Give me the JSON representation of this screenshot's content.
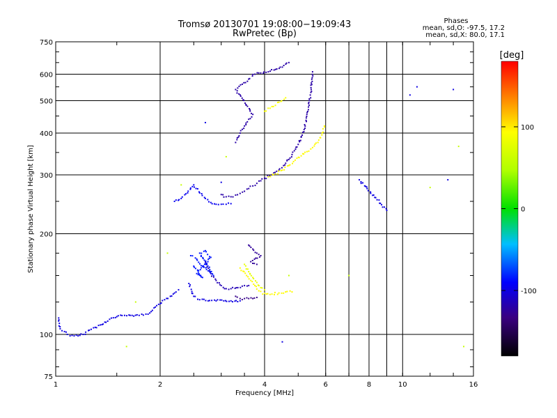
{
  "chart_data": {
    "type": "scatter",
    "title": "Tromsø 20130701 19:08:00−19:09:43",
    "subtitle": "RwPretec (Bp)",
    "xlabel": "Frequency [MHz]",
    "ylabel": "Stationary phase Virtual Height [km]",
    "x_scale": "log",
    "y_scale": "log",
    "xlim": [
      1,
      16
    ],
    "ylim": [
      75,
      750
    ],
    "x_ticks": [
      1,
      2,
      4,
      6,
      8,
      10,
      16
    ],
    "x_tick_labels": [
      "1",
      "2",
      "4",
      "6",
      "8",
      "10",
      "16"
    ],
    "x_gridlines": [
      2,
      4,
      6,
      7,
      8,
      9,
      10
    ],
    "y_ticks": [
      75,
      100,
      200,
      300,
      400,
      500,
      600,
      750
    ],
    "y_tick_labels": [
      "75",
      "100",
      "200",
      "300",
      "400",
      "500",
      "600",
      "750"
    ],
    "y_gridlines": [
      100,
      200,
      300,
      400,
      500,
      600
    ],
    "grid": true,
    "legend_position": "top-right",
    "legend": {
      "title": "Phases",
      "line1": "mean, sd,O:  -97.5, 17.2",
      "line2": "mean, sd,X:  80.0, 17.1"
    },
    "colorbar": {
      "label": "[deg]",
      "range": [
        -180,
        180
      ],
      "ticks": [
        100,
        0,
        -100
      ],
      "tick_labels": [
        "100",
        "0",
        "-100"
      ]
    },
    "series": [
      {
        "traces": [
          {
            "phase": -100,
            "points": [
              [
                1.02,
                112
              ],
              [
                1.03,
                104
              ],
              [
                1.06,
                102
              ],
              [
                1.08,
                100
              ],
              [
                1.1,
                99
              ],
              [
                1.13,
                99
              ],
              [
                1.16,
                99
              ],
              [
                1.2,
                100
              ],
              [
                1.25,
                103
              ],
              [
                1.3,
                105
              ],
              [
                1.36,
                107
              ],
              [
                1.43,
                111
              ],
              [
                1.5,
                113
              ],
              [
                1.58,
                114
              ],
              [
                1.66,
                114
              ],
              [
                1.74,
                114
              ],
              [
                1.82,
                115
              ],
              [
                1.9,
                118
              ],
              [
                1.98,
                123
              ],
              [
                2.06,
                127
              ],
              [
                2.14,
                130
              ],
              [
                2.2,
                133
              ],
              [
                2.26,
                136
              ]
            ]
          },
          {
            "phase": -100,
            "points": [
              [
                2.42,
                142
              ],
              [
                2.5,
                130
              ],
              [
                2.6,
                127
              ],
              [
                2.75,
                126
              ],
              [
                2.9,
                126
              ],
              [
                3.05,
                126
              ],
              [
                3.2,
                126
              ],
              [
                3.4,
                126
              ]
            ]
          },
          {
            "phase": -115,
            "points": [
              [
                2.7,
                165
              ],
              [
                2.8,
                152
              ],
              [
                2.9,
                145
              ],
              [
                3.0,
                140
              ],
              [
                3.1,
                137
              ],
              [
                3.2,
                137
              ],
              [
                3.35,
                138
              ],
              [
                3.5,
                140
              ],
              [
                3.6,
                140
              ]
            ]
          },
          {
            "phase": -130,
            "points": [
              [
                3.3,
                130
              ],
              [
                3.4,
                128
              ],
              [
                3.5,
                128
              ],
              [
                3.6,
                128
              ],
              [
                3.7,
                128
              ],
              [
                3.8,
                129
              ]
            ]
          },
          {
            "phase": -85,
            "points": [
              [
                2.45,
                172
              ],
              [
                2.55,
                168
              ],
              [
                2.65,
                160
              ],
              [
                2.75,
                155
              ],
              [
                2.85,
                150
              ],
              [
                2.6,
                175
              ],
              [
                2.7,
                178
              ],
              [
                2.8,
                170
              ],
              [
                2.55,
                152
              ],
              [
                2.65,
                148
              ],
              [
                2.5,
                160
              ]
            ]
          },
          {
            "phase": 95,
            "points": [
              [
                3.4,
                158
              ],
              [
                3.55,
                150
              ],
              [
                3.65,
                145
              ],
              [
                3.75,
                140
              ],
              [
                3.85,
                135
              ],
              [
                3.95,
                132
              ],
              [
                4.05,
                132
              ],
              [
                4.2,
                132
              ],
              [
                4.4,
                133
              ],
              [
                4.6,
                134
              ],
              [
                4.8,
                134
              ]
            ]
          },
          {
            "phase": 80,
            "points": [
              [
                3.5,
                162
              ],
              [
                3.6,
                154
              ],
              [
                3.7,
                148
              ],
              [
                3.8,
                143
              ],
              [
                3.9,
                138
              ],
              [
                4.0,
                136
              ]
            ]
          },
          {
            "phase": -125,
            "points": [
              [
                3.6,
                185
              ],
              [
                3.7,
                180
              ],
              [
                3.8,
                175
              ],
              [
                3.9,
                172
              ],
              [
                3.65,
                165
              ],
              [
                3.8,
                162
              ]
            ]
          },
          {
            "phase": -95,
            "points": [
              [
                2.2,
                250
              ],
              [
                2.3,
                255
              ],
              [
                2.4,
                265
              ],
              [
                2.5,
                280
              ],
              [
                2.6,
                265
              ],
              [
                2.7,
                255
              ],
              [
                2.8,
                248
              ],
              [
                2.9,
                245
              ],
              [
                3.0,
                245
              ],
              [
                3.1,
                245
              ],
              [
                3.2,
                246
              ]
            ]
          },
          {
            "phase": -120,
            "points": [
              [
                3.0,
                262
              ],
              [
                3.1,
                258
              ],
              [
                3.2,
                258
              ],
              [
                3.3,
                261
              ],
              [
                3.4,
                264
              ],
              [
                3.5,
                268
              ],
              [
                3.6,
                273
              ],
              [
                3.7,
                278
              ],
              [
                3.8,
                283
              ],
              [
                3.9,
                288
              ],
              [
                4.0,
                293
              ],
              [
                4.2,
                300
              ],
              [
                4.4,
                310
              ],
              [
                4.6,
                325
              ],
              [
                4.8,
                345
              ],
              [
                5.0,
                370
              ],
              [
                5.2,
                410
              ],
              [
                5.35,
                470
              ],
              [
                5.45,
                540
              ],
              [
                5.5,
                610
              ]
            ]
          },
          {
            "phase": 95,
            "points": [
              [
                4.1,
                296
              ],
              [
                4.3,
                302
              ],
              [
                4.5,
                310
              ],
              [
                4.7,
                320
              ],
              [
                4.9,
                332
              ],
              [
                5.1,
                342
              ],
              [
                5.3,
                352
              ],
              [
                5.5,
                362
              ],
              [
                5.7,
                375
              ],
              [
                5.85,
                395
              ],
              [
                5.95,
                420
              ]
            ]
          },
          {
            "phase": -120,
            "points": [
              [
                3.3,
                375
              ],
              [
                3.4,
                400
              ],
              [
                3.5,
                420
              ],
              [
                3.6,
                440
              ],
              [
                3.7,
                455
              ],
              [
                3.3,
                540
              ],
              [
                3.45,
                560
              ],
              [
                3.6,
                580
              ],
              [
                3.75,
                600
              ],
              [
                3.9,
                605
              ],
              [
                4.1,
                610
              ],
              [
                4.3,
                620
              ],
              [
                4.5,
                630
              ],
              [
                4.7,
                650
              ]
            ]
          },
          {
            "phase": 90,
            "points": [
              [
                4.0,
                465
              ],
              [
                4.2,
                480
              ],
              [
                4.4,
                495
              ],
              [
                4.6,
                510
              ]
            ]
          },
          {
            "phase": 60,
            "points": [
              [
                2.1,
                175
              ],
              [
                1.7,
                125
              ],
              [
                1.6,
                92
              ],
              [
                2.3,
                280
              ],
              [
                3.1,
                340
              ],
              [
                4.7,
                150
              ],
              [
                7.0,
                150
              ],
              [
                15.0,
                92
              ],
              [
                14.5,
                365
              ],
              [
                12.0,
                275
              ]
            ]
          },
          {
            "phase": -100,
            "points": [
              [
                10.5,
                520
              ],
              [
                14.0,
                540
              ],
              [
                13.5,
                290
              ],
              [
                11.0,
                550
              ],
              [
                9.0,
                235
              ],
              [
                7.5,
                290
              ],
              [
                4.5,
                95
              ],
              [
                3.0,
                285
              ],
              [
                2.7,
                430
              ]
            ]
          }
        ]
      }
    ]
  }
}
